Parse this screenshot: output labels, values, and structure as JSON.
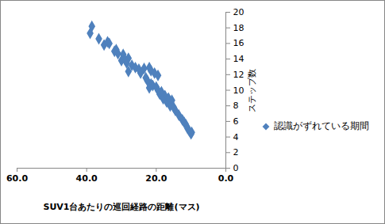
{
  "chart_data": {
    "type": "scatter",
    "x_label": "SUV1台あたりの巡回経路の距離(マス)",
    "y_label": "ステップ数",
    "xlim": [
      60,
      0
    ],
    "xticks": [
      {
        "value": 60,
        "label": "60.0"
      },
      {
        "value": 40,
        "label": "40.0"
      },
      {
        "value": 20,
        "label": "20.0"
      },
      {
        "value": 0,
        "label": "0.0"
      }
    ],
    "ylim": [
      0,
      20
    ],
    "yticks": [
      0,
      2,
      4,
      6,
      8,
      10,
      12,
      14,
      16,
      18,
      20
    ],
    "grid": false,
    "legend": "right",
    "series": [
      {
        "name": "認識がずれている期間",
        "color": "#4f81bd",
        "marker": "diamond",
        "x": [
          38.5,
          39,
          36.5,
          34,
          35,
          33.5,
          32,
          31,
          31.5,
          29.5,
          29,
          30,
          28,
          28.5,
          27,
          28,
          26,
          25,
          24.5,
          23.5,
          22,
          21.5,
          20.5,
          19.5,
          23,
          22.5,
          21.5,
          22,
          21,
          20,
          19.5,
          19,
          18.5,
          17.5,
          18,
          17,
          16.5,
          16,
          15.5,
          15,
          14.5,
          13.5,
          12.5,
          12,
          11.5,
          11,
          10.5,
          10,
          9.8,
          16
        ],
        "values": [
          18.2,
          17.3,
          16.6,
          16.2,
          15.8,
          16.0,
          15.0,
          14.7,
          15.2,
          14.6,
          13.9,
          13.8,
          14.1,
          13.5,
          13.2,
          12.4,
          12.9,
          12.7,
          12.2,
          12.8,
          12.9,
          12.5,
          12.2,
          11.9,
          11.6,
          11.2,
          10.8,
          10.3,
          10.6,
          10.4,
          10.0,
          9.5,
          9.8,
          9.3,
          8.9,
          8.5,
          9.0,
          8.3,
          8.7,
          7.8,
          7.4,
          6.8,
          6.2,
          5.9,
          5.6,
          5.1,
          4.8,
          4.4,
          4.6,
          8.0
        ]
      }
    ]
  }
}
